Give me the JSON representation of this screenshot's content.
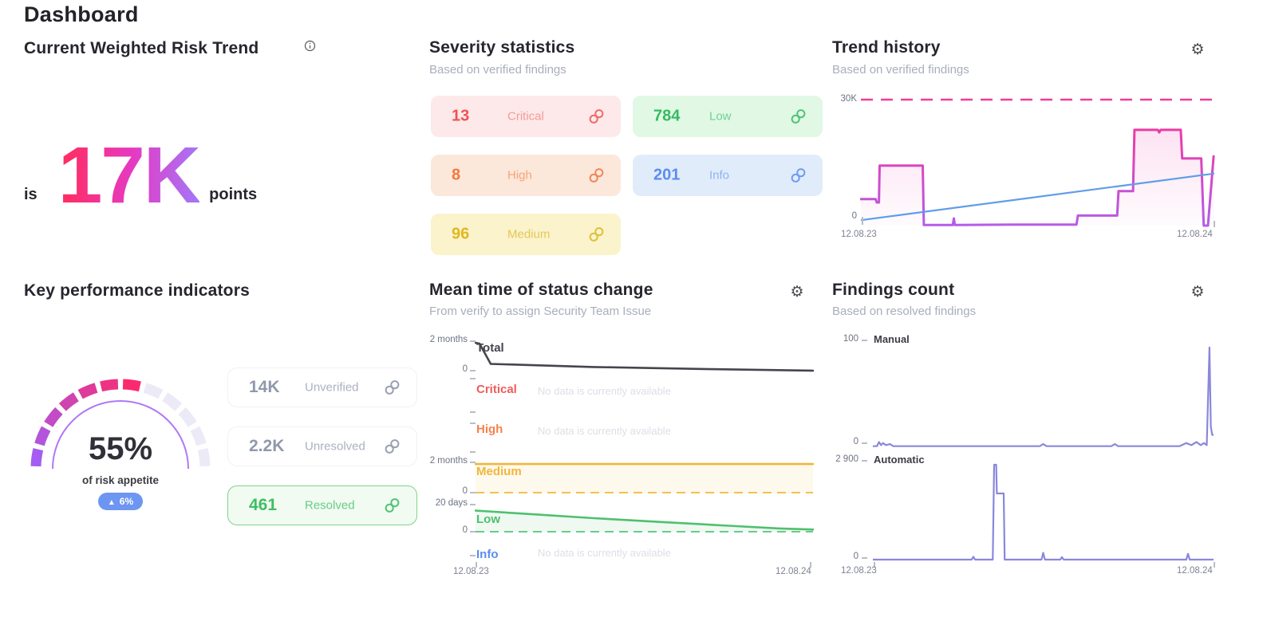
{
  "page": {
    "title": "Dashboard"
  },
  "risk_trend": {
    "title": "Current Weighted Risk Trend",
    "prefix": "is",
    "value": "17K",
    "suffix": "points",
    "gradient": [
      "#ff2d60",
      "#e639c2",
      "#a873f5"
    ]
  },
  "severity": {
    "title": "Severity statistics",
    "subtitle": "Based on verified findings",
    "cards": [
      {
        "value": "13",
        "label": "Critical",
        "bg": "#fde9e9",
        "number_color": "#ee5253",
        "label_color": "#f49a9a",
        "icon_color": "#ef6b6b"
      },
      {
        "value": "8",
        "label": "High",
        "bg": "#fbe8da",
        "number_color": "#f2793f",
        "label_color": "#f5a478",
        "icon_color": "#f2875a"
      },
      {
        "value": "96",
        "label": "Medium",
        "bg": "#faf3cb",
        "number_color": "#e2b71f",
        "label_color": "#e5c75a",
        "icon_color": "#dfc03a"
      },
      {
        "value": "784",
        "label": "Low",
        "bg": "#e0f8e4",
        "number_color": "#35ba63",
        "label_color": "#72cf96",
        "icon_color": "#51c379"
      },
      {
        "value": "201",
        "label": "Info",
        "bg": "#e1ecfb",
        "number_color": "#5b8def",
        "label_color": "#8fb2f2",
        "icon_color": "#6f9cf0"
      }
    ]
  },
  "trend_history": {
    "title": "Trend history",
    "subtitle": "Based on verified findings"
  },
  "kpi": {
    "title": "Key performance indicators",
    "cards": [
      {
        "value": "14K",
        "label": "Unverified",
        "bg": "#ffffff",
        "border": "#f1f1f6",
        "number_color": "#9098aa",
        "label_color": "#abb1c0",
        "icon_color": "#9aa1b1"
      },
      {
        "value": "2.2K",
        "label": "Unresolved",
        "bg": "#ffffff",
        "border": "#f1f1f6",
        "number_color": "#9098aa",
        "label_color": "#abb1c0",
        "icon_color": "#9aa1b1"
      },
      {
        "value": "461",
        "label": "Resolved",
        "bg": "#f1fbf2",
        "border": "#7fd489",
        "number_color": "#3fbe64",
        "label_color": "#68cb88",
        "icon_color": "#52c377"
      }
    ]
  },
  "mean_time_panel": {
    "title": "Mean time of status change",
    "subtitle": "From verify to assign Security Team Issue"
  },
  "findings_panel": {
    "title": "Findings count",
    "subtitle": "Based on resolved findings"
  },
  "chart_data": {
    "trend_history": {
      "type": "line",
      "title": "Trend history",
      "x_range": [
        "12.08.23",
        "12.08.24"
      ],
      "ylim": [
        0,
        30000
      ],
      "y_zero_label": "0",
      "threshold": {
        "value": 30000,
        "label": "30K",
        "style": "dashed",
        "color": "#f23b9e"
      },
      "series": [
        {
          "name": "weighted-risk-steps",
          "color_top": "#ed3aa6",
          "color_bottom": "#b55ce8",
          "fill": true,
          "points": [
            [
              0,
              6300
            ],
            [
              0.042,
              6300
            ],
            [
              0.045,
              5500
            ],
            [
              0.051,
              5500
            ],
            [
              0.053,
              14300
            ],
            [
              0.175,
              14300
            ],
            [
              0.178,
              150
            ],
            [
              0.26,
              150
            ],
            [
              0.263,
              1700
            ],
            [
              0.266,
              150
            ],
            [
              0.45,
              250
            ],
            [
              0.61,
              250
            ],
            [
              0.614,
              2400
            ],
            [
              0.725,
              2400
            ],
            [
              0.729,
              8200
            ],
            [
              0.77,
              8200
            ],
            [
              0.774,
              22800
            ],
            [
              0.84,
              22800
            ],
            [
              0.844,
              22200
            ],
            [
              0.848,
              22800
            ],
            [
              0.905,
              22800
            ],
            [
              0.909,
              16000
            ],
            [
              0.963,
              16000
            ],
            [
              0.97,
              0
            ],
            [
              0.982,
              0
            ],
            [
              0.998,
              16500
            ]
          ]
        },
        {
          "name": "trend-line",
          "color": "#5f9de8",
          "points": [
            [
              0,
              1300
            ],
            [
              1,
              12400
            ]
          ]
        }
      ]
    },
    "mean_time": {
      "type": "line-multiples",
      "x_range": [
        "12.08.23",
        "12.08.24"
      ],
      "rows": [
        {
          "label": "Total",
          "color": "#45454e",
          "ymax_label": "2 months",
          "zero_label": "0",
          "points": [
            [
              0,
              0.95
            ],
            [
              0.012,
              0.92
            ],
            [
              0.045,
              0.27
            ],
            [
              0.35,
              0.17
            ],
            [
              0.7,
              0.1
            ],
            [
              1,
              0.05
            ]
          ]
        },
        {
          "label": "Critical",
          "color": "#ef5c5c",
          "nodata": "No data is currently available"
        },
        {
          "label": "High",
          "color": "#f4824e",
          "nodata": "No data is currently available"
        },
        {
          "label": "Medium",
          "color": "#f0b73a",
          "dash_color": "#f2c14e",
          "ymax_label": "2 months",
          "zero_label": "0",
          "dashed_zero": true,
          "fill": true,
          "points": [
            [
              0,
              0.97
            ],
            [
              1,
              0.97
            ]
          ]
        },
        {
          "label": "Low",
          "color": "#4fc06e",
          "dash_color": "#69cc88",
          "ymax_label": "20 days",
          "zero_label": "0",
          "dashed_zero": true,
          "fill": true,
          "points": [
            [
              0,
              0.78
            ],
            [
              0.15,
              0.66
            ],
            [
              0.35,
              0.5
            ],
            [
              0.55,
              0.36
            ],
            [
              0.75,
              0.22
            ],
            [
              0.9,
              0.12
            ],
            [
              1,
              0.08
            ]
          ]
        },
        {
          "label": "Info",
          "color": "#5b8def",
          "nodata": "No data is currently available"
        }
      ]
    },
    "findings_manual": {
      "type": "line",
      "label": "Manual",
      "ymax": 100,
      "ymax_label": "100",
      "zero_label": "0",
      "color": "#8a87dc",
      "x_range": [
        "12.08.23",
        "12.08.24"
      ],
      "points": [
        [
          0,
          1
        ],
        [
          0.012,
          1
        ],
        [
          0.018,
          5
        ],
        [
          0.024,
          2
        ],
        [
          0.03,
          4
        ],
        [
          0.038,
          2
        ],
        [
          0.05,
          3
        ],
        [
          0.06,
          1
        ],
        [
          0.3,
          1
        ],
        [
          0.49,
          1
        ],
        [
          0.5,
          3
        ],
        [
          0.51,
          1
        ],
        [
          0.7,
          1
        ],
        [
          0.71,
          3
        ],
        [
          0.72,
          1
        ],
        [
          0.9,
          1
        ],
        [
          0.92,
          4
        ],
        [
          0.935,
          2
        ],
        [
          0.95,
          5
        ],
        [
          0.962,
          2
        ],
        [
          0.972,
          4
        ],
        [
          0.98,
          2
        ],
        [
          0.988,
          97
        ],
        [
          0.992,
          20
        ],
        [
          0.996,
          12
        ],
        [
          1,
          12
        ]
      ]
    },
    "findings_automatic": {
      "type": "line",
      "label": "Automatic",
      "ymax": 2900,
      "ymax_label": "2 900",
      "zero_label": "0",
      "color": "#8a87dc",
      "x_range": [
        "12.08.23",
        "12.08.24"
      ],
      "points": [
        [
          0,
          25
        ],
        [
          0.29,
          25
        ],
        [
          0.295,
          110
        ],
        [
          0.3,
          25
        ],
        [
          0.352,
          25
        ],
        [
          0.356,
          2900
        ],
        [
          0.362,
          2900
        ],
        [
          0.364,
          2030
        ],
        [
          0.384,
          2030
        ],
        [
          0.387,
          25
        ],
        [
          0.495,
          25
        ],
        [
          0.5,
          230
        ],
        [
          0.505,
          25
        ],
        [
          0.55,
          25
        ],
        [
          0.555,
          100
        ],
        [
          0.56,
          25
        ],
        [
          0.92,
          25
        ],
        [
          0.925,
          200
        ],
        [
          0.93,
          25
        ],
        [
          1,
          25
        ]
      ]
    },
    "gauge": {
      "type": "gauge",
      "percent": 55,
      "percent_label": "55%",
      "caption": "of risk appetite",
      "delta": "6%",
      "delta_direction": "up",
      "segments": 12,
      "filled": 7,
      "colors": {
        "from": "#a45df2",
        "to": "#fb2a6e",
        "empty": "#edeaf7",
        "inner": "#a76af2",
        "badge": "#6d96f3"
      }
    }
  }
}
